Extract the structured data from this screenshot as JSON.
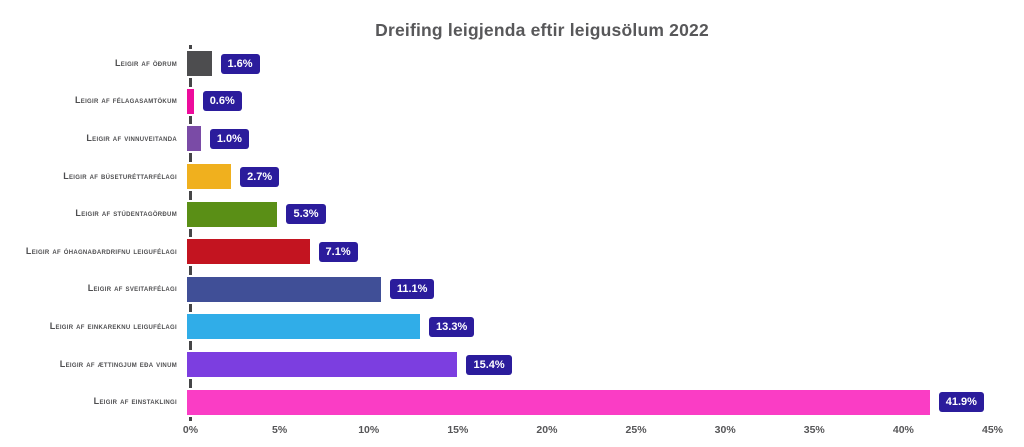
{
  "title": "Dreifing leigjenda eftir leigusölum 2022",
  "colors": {
    "background": "#ffffff",
    "title_text": "#58585a",
    "category_label_text": "#4e4e50",
    "axis_line": "#454547",
    "tick_label_text": "#565658",
    "value_badge_background": "#2b1c9c",
    "value_badge_text": "#ffffff"
  },
  "chart_data": {
    "type": "bar",
    "orientation": "horizontal",
    "title": "Dreifing leigjenda eftir leigusölum 2022",
    "categories": [
      "Leigir af öðrum",
      "Leigir af félagasamtökum",
      "Leigir af vinnuveitanda",
      "Leigir af búseturéttarfélagi",
      "Leigir af stúdentagörðum",
      "Leigir af óhagnaðardrifnu leigufélagi",
      "Leigir af sveitarfélagi",
      "Leigir af einkareknu leigufélagi",
      "Leigir af ættingjum eða vinum",
      "Leigir af einstaklingi"
    ],
    "values": [
      1.6,
      0.6,
      1.0,
      2.7,
      5.3,
      7.1,
      11.1,
      13.3,
      15.4,
      41.9
    ],
    "value_labels": [
      "1.6%",
      "0.6%",
      "1.0%",
      "2.7%",
      "5.3%",
      "7.1%",
      "11.1%",
      "13.3%",
      "15.4%",
      "41.9%"
    ],
    "bar_colors": [
      "#4d4d4f",
      "#ed0c9c",
      "#7a4ba6",
      "#f0b01e",
      "#5a8f16",
      "#c31420",
      "#404f97",
      "#30ade8",
      "#7c3ee0",
      "#fa3dc5"
    ],
    "xlabel": "",
    "ylabel": "",
    "x_ticks": [
      "0%",
      "5%",
      "10%",
      "15%",
      "20%",
      "25%",
      "30%",
      "35%",
      "40%",
      "45%"
    ],
    "xlim": [
      0,
      45
    ],
    "grid": false,
    "legend": "none"
  }
}
